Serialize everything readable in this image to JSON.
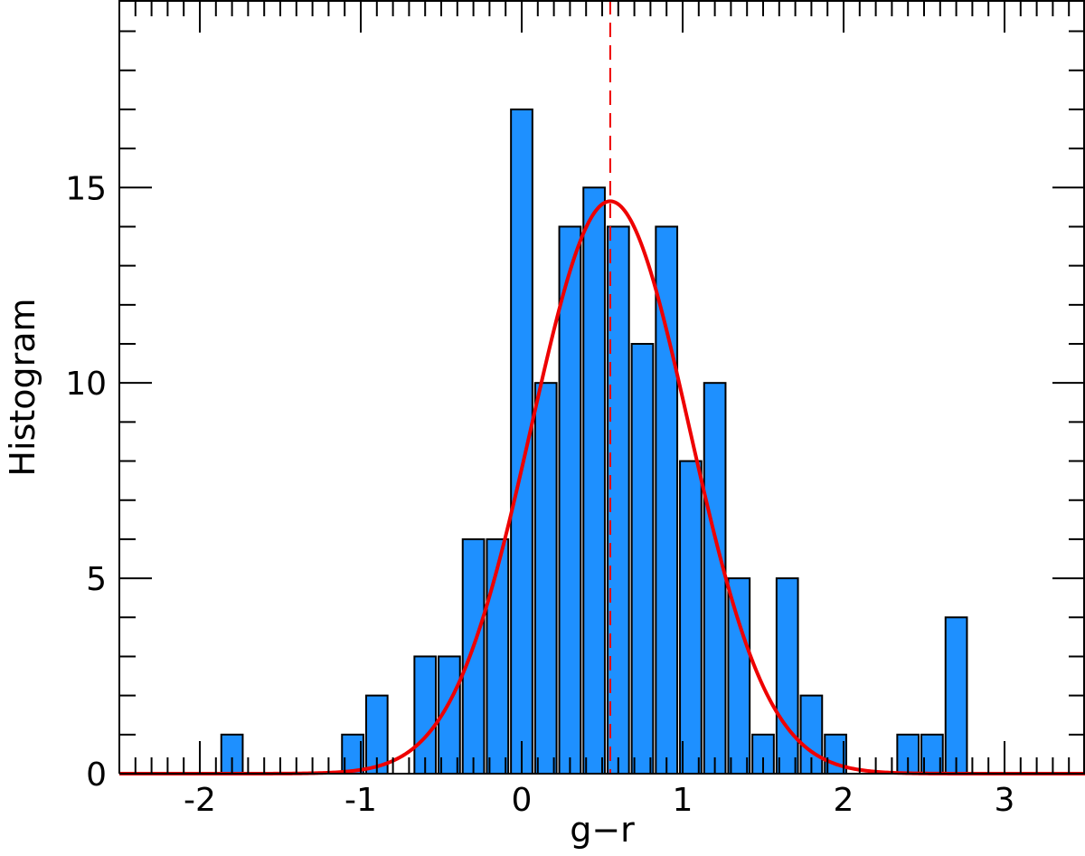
{
  "chart_data": {
    "type": "bar",
    "xlabel": "g−r",
    "ylabel": "Histogram",
    "xlim": [
      -2.5,
      3.5
    ],
    "ylim": [
      0,
      19.8
    ],
    "x_ticks": [
      -2,
      -1,
      0,
      1,
      2,
      3
    ],
    "x_tick_labels": [
      "-2",
      "-1",
      "0",
      "1",
      "2",
      "3"
    ],
    "y_ticks": [
      0,
      5,
      10,
      15
    ],
    "y_tick_labels": [
      "0",
      "5",
      "10",
      "15"
    ],
    "bin_width": 0.15,
    "bin_centers": [
      -1.8,
      -1.05,
      -0.9,
      -0.6,
      -0.45,
      -0.3,
      -0.15,
      0.0,
      0.15,
      0.3,
      0.45,
      0.6,
      0.75,
      0.9,
      1.05,
      1.2,
      1.35,
      1.5,
      1.65,
      1.8,
      1.95,
      2.4,
      2.55,
      2.7
    ],
    "values": [
      1,
      1,
      2,
      3,
      3,
      6,
      6,
      17,
      10,
      14,
      15,
      14,
      11,
      14,
      8,
      10,
      5,
      1,
      5,
      2,
      1,
      1,
      1,
      4
    ],
    "fit_curve": {
      "type": "gaussian",
      "amplitude": 14.65,
      "mean": 0.55,
      "sigma": 0.49,
      "color": "#ee0000"
    },
    "reference_line": {
      "x": 0.55,
      "style": "dashed",
      "color": "#ee0000"
    },
    "bar_color": "#1e90ff",
    "bar_edge_color": "#000000",
    "grid": false
  }
}
